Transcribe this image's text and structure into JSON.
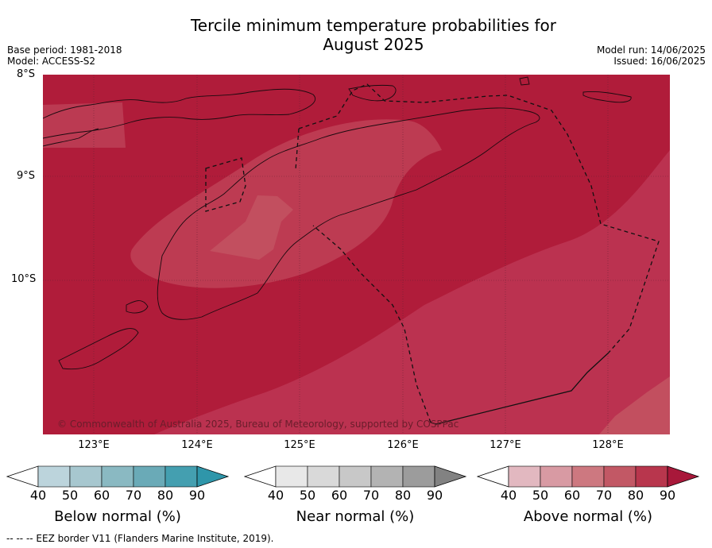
{
  "header": {
    "title_line1": "Tercile minimum temperature probabilities for",
    "title_line2": "August 2025",
    "base_period": "Base period: 1981-2018",
    "model": "Model: ACCESS-S2",
    "model_run": "Model run: 14/06/2025",
    "issued": "Issued: 16/06/2025"
  },
  "map": {
    "lat_labels": [
      "8°S",
      "9°S",
      "10°S"
    ],
    "lon_labels": [
      "123°E",
      "124°E",
      "125°E",
      "126°E",
      "127°E",
      "128°E"
    ],
    "copyright": "© Commonwealth of Australia 2025, Bureau of Meteorology, supported by COSPPac",
    "colors": {
      "above_90": "#b01c3a",
      "above_80": "#bd3a52",
      "above_70": "#c24f5f",
      "ocean_bg": "#b01c3a"
    }
  },
  "legends": [
    {
      "label": "Below normal (%)",
      "ticks": [
        "40",
        "50",
        "60",
        "70",
        "80",
        "90"
      ],
      "colors": [
        "#ffffff",
        "#bcd4dc",
        "#a7c7cf",
        "#8ab9c2",
        "#6aaab7",
        "#449fb0",
        "#2f96aa"
      ]
    },
    {
      "label": "Near normal (%)",
      "ticks": [
        "40",
        "50",
        "60",
        "70",
        "80",
        "90"
      ],
      "colors": [
        "#ffffff",
        "#e8e8e8",
        "#d9d9d9",
        "#c8c8c8",
        "#b3b3b3",
        "#9c9c9c",
        "#828282"
      ]
    },
    {
      "label": "Above normal (%)",
      "ticks": [
        "40",
        "50",
        "60",
        "70",
        "80",
        "90"
      ],
      "colors": [
        "#ffffff",
        "#e2b8c0",
        "#d89aa3",
        "#cd7880",
        "#c25865",
        "#b8364d",
        "#a8183a"
      ]
    }
  ],
  "footnote": "--  --  -- EEZ border V11 (Flanders Marine Institute, 2019)."
}
